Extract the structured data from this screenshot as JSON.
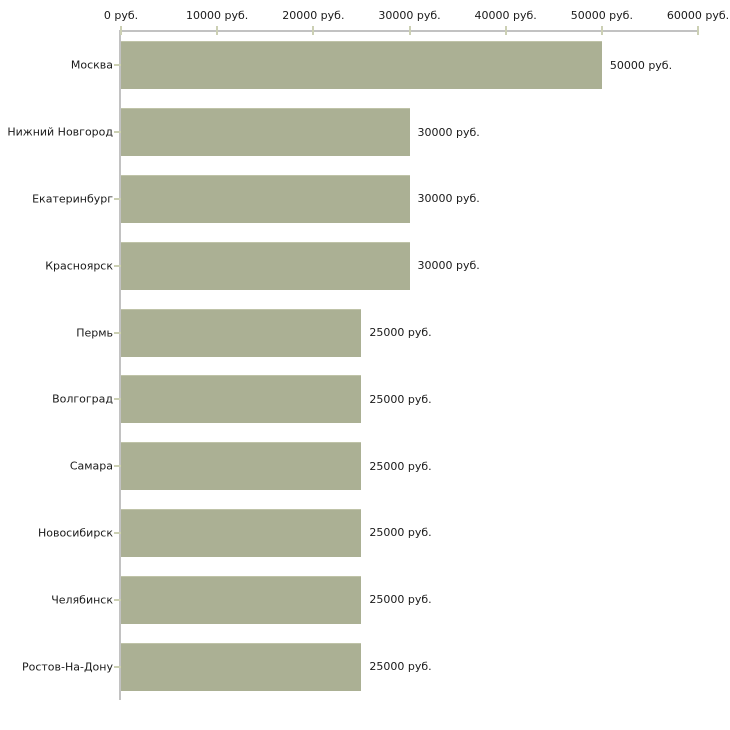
{
  "chart_data": {
    "type": "bar",
    "orientation": "horizontal",
    "title": "",
    "unit": "руб.",
    "categories": [
      "Москва",
      "Нижний Новгород",
      "Екатеринбург",
      "Красноярск",
      "Пермь",
      "Волгоград",
      "Самара",
      "Новосибирск",
      "Челябинск",
      "Ростов-На-Дону"
    ],
    "values": [
      50000,
      30000,
      30000,
      30000,
      25000,
      25000,
      25000,
      25000,
      25000,
      25000
    ],
    "value_labels": [
      "50000 руб.",
      "30000 руб.",
      "30000 руб.",
      "30000 руб.",
      "25000 руб.",
      "25000 руб.",
      "25000 руб.",
      "25000 руб.",
      "25000 руб.",
      "25000 руб."
    ],
    "x_axis": {
      "min": 0,
      "max": 60000,
      "ticks": [
        0,
        10000,
        20000,
        30000,
        40000,
        50000,
        60000
      ],
      "tick_labels": [
        "0 руб.",
        "10000 руб.",
        "20000 руб.",
        "30000 руб.",
        "40000 руб.",
        "50000 руб.",
        "60000 руб."
      ]
    },
    "grid": false,
    "legend": false,
    "colors": {
      "bar": "#abb094",
      "bar_edge": "#bfc3a8",
      "axis": "#c2c2c2",
      "tick": "#ccd0b4",
      "text": "#1a1a1a",
      "background": "#ffffff"
    }
  }
}
